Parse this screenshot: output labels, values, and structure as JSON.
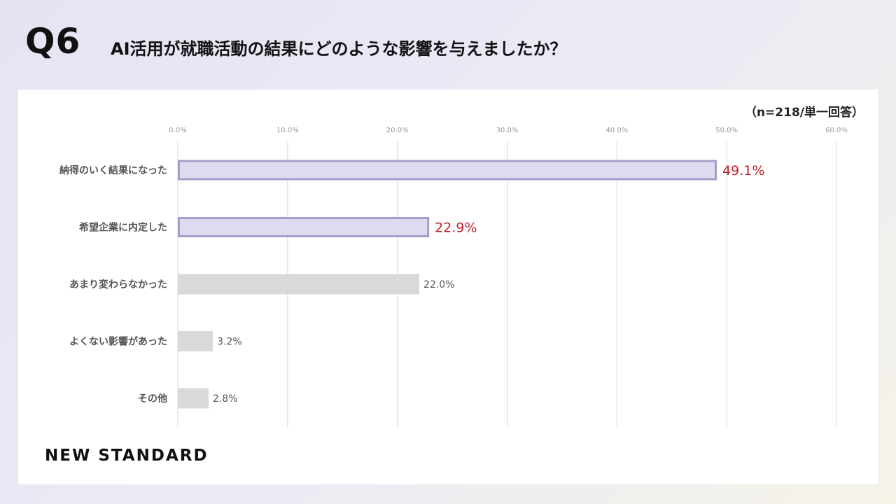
{
  "header": {
    "question_number": "Q6",
    "question": "AI活用が就職活動の結果にどのような影響を与えましたか？"
  },
  "note": "（n=218/単一回答）",
  "brand": "NEW STANDARD",
  "colors": {
    "highlight_fill": "#dedaf0",
    "highlight_stroke": "#a59ccc",
    "highlight_label": "#c0212b",
    "normal_fill": "#d9d9d9",
    "normal_label": "#555555",
    "grid": "#d9d9d9",
    "tick": "#999999",
    "category": "#555555"
  },
  "chart_data": {
    "type": "bar",
    "orientation": "horizontal",
    "categories": [
      "納得のいく結果になった",
      "希望企業に内定した",
      "あまり変わらなかった",
      "よくない影響があった",
      "その他"
    ],
    "values": [
      49.1,
      22.9,
      22.0,
      3.2,
      2.8
    ],
    "value_labels": [
      "49.1%",
      "22.9%",
      "22.0%",
      "3.2%",
      "2.8%"
    ],
    "highlighted": [
      true,
      true,
      false,
      false,
      false
    ],
    "xlim": [
      0,
      60
    ],
    "xticks": [
      0,
      10,
      20,
      30,
      40,
      50,
      60
    ],
    "xtick_labels": [
      "0.0%",
      "10.0%",
      "20.0%",
      "30.0%",
      "40.0%",
      "50.0%",
      "60.0%"
    ],
    "grid": true,
    "legend": "none"
  }
}
